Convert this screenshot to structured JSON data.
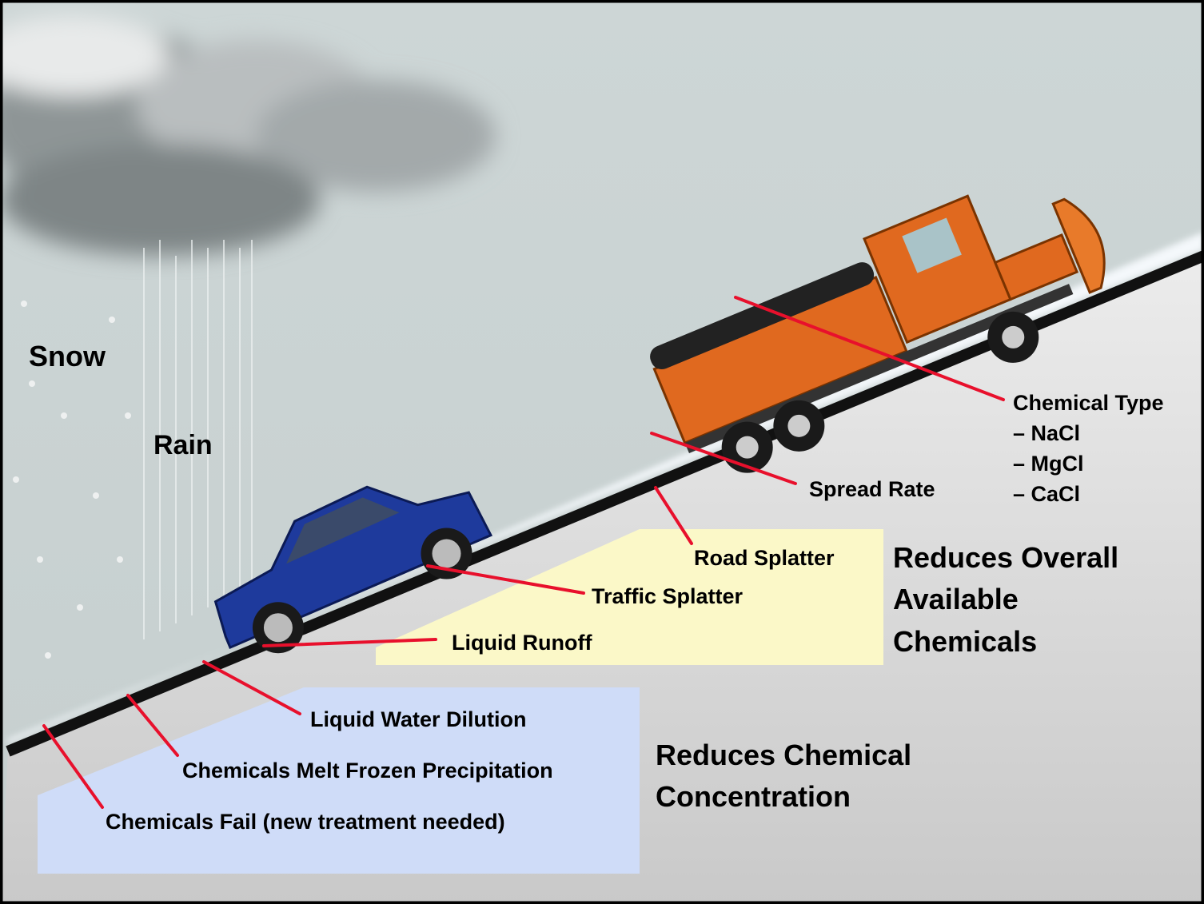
{
  "weather": [
    "Snow",
    "Rain"
  ],
  "chemical_type": {
    "title": "Chemical Type",
    "items": [
      "– NaCl",
      "– MgCl",
      "– CaCl"
    ]
  },
  "callouts": [
    "Spread Rate",
    "Road Splatter",
    "Traffic Splatter",
    "Liquid Runoff",
    "Liquid Water Dilution",
    "Chemicals Melt Frozen Precipitation",
    "Chemicals Fail (new treatment needed)"
  ],
  "effects": {
    "overall": [
      "Reduces Overall",
      "Available",
      "Chemicals"
    ],
    "concentration": [
      "Reduces Chemical",
      "Concentration"
    ]
  }
}
